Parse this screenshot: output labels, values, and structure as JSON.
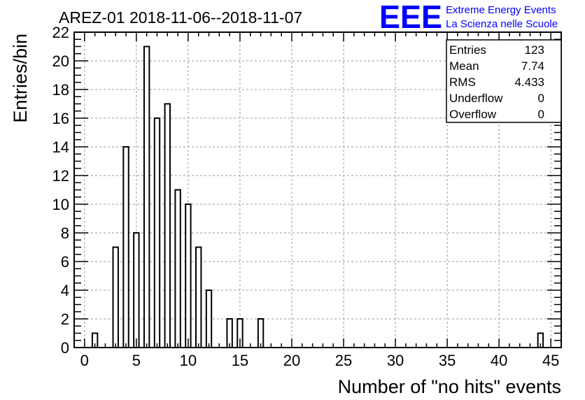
{
  "title": "AREZ-01 2018-11-06--2018-11-07",
  "logo": {
    "letters": "EEE",
    "line1": "Extreme Energy Events",
    "line2": "La Scienza nelle Scuole",
    "color": "#0000ff"
  },
  "stats": [
    {
      "label": "Entries",
      "value": "123"
    },
    {
      "label": "Mean",
      "value": "7.74"
    },
    {
      "label": "RMS",
      "value": "4.433"
    },
    {
      "label": "Underflow",
      "value": "0"
    },
    {
      "label": "Overflow",
      "value": "0"
    }
  ],
  "chart_data": {
    "type": "bar",
    "title": "AREZ-01 2018-11-06--2018-11-07",
    "xlabel": "Number of \"no hits\" events",
    "ylabel": "Entries/bin",
    "xlim": [
      -1,
      46
    ],
    "ylim": [
      0,
      22
    ],
    "bin_width": 0.5,
    "x_ticks": [
      "0",
      "5",
      "10",
      "15",
      "20",
      "25",
      "30",
      "35",
      "40",
      "45"
    ],
    "x_tick_values": [
      0,
      5,
      10,
      15,
      20,
      25,
      30,
      35,
      40,
      45
    ],
    "y_ticks": [
      "0",
      "2",
      "4",
      "6",
      "8",
      "10",
      "12",
      "14",
      "16",
      "18",
      "20",
      "22"
    ],
    "y_tick_values": [
      0,
      2,
      4,
      6,
      8,
      10,
      12,
      14,
      16,
      18,
      20,
      22
    ],
    "grid": true,
    "bins": [
      {
        "x": 1,
        "count": 1
      },
      {
        "x": 3,
        "count": 7
      },
      {
        "x": 4,
        "count": 14
      },
      {
        "x": 5,
        "count": 8
      },
      {
        "x": 6,
        "count": 21
      },
      {
        "x": 7,
        "count": 16
      },
      {
        "x": 8,
        "count": 17
      },
      {
        "x": 9,
        "count": 11
      },
      {
        "x": 10,
        "count": 10
      },
      {
        "x": 11,
        "count": 7
      },
      {
        "x": 12,
        "count": 4
      },
      {
        "x": 14,
        "count": 2
      },
      {
        "x": 15,
        "count": 2
      },
      {
        "x": 17,
        "count": 2
      },
      {
        "x": 44,
        "count": 1
      }
    ]
  }
}
